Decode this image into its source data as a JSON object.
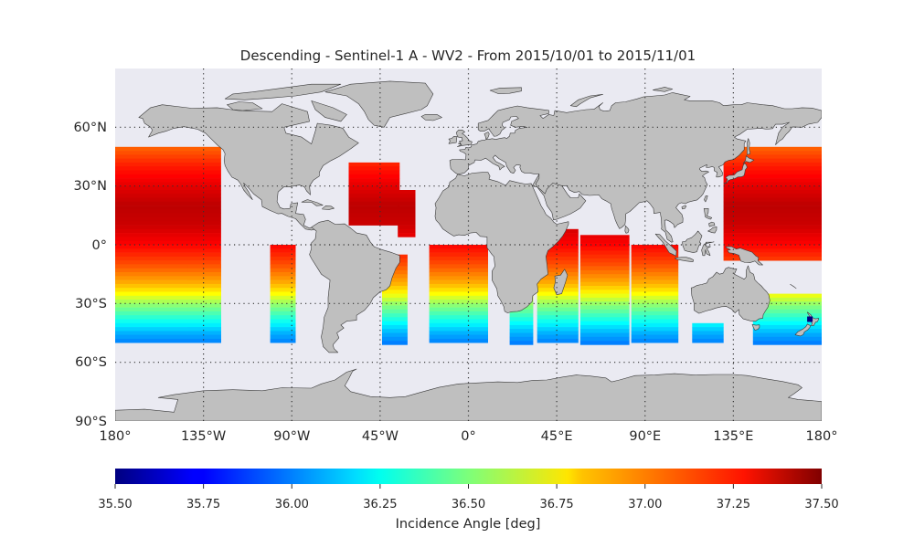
{
  "title": "Descending - Sentinel-1 A - WV2 - From 2015/10/01 to 2015/11/01",
  "map": {
    "projection": "equirectangular",
    "lon_range": [
      -180,
      180
    ],
    "lat_range": [
      -90,
      90
    ],
    "ocean_color": "#eaeaf2",
    "land_color": "#bfbfbf",
    "coast_color": "#3a3a3a",
    "graticule": "dotted",
    "lon_tick_labels": [
      "180°",
      "135°W",
      "90°W",
      "45°W",
      "0°",
      "45°E",
      "90°E",
      "135°E",
      "180°"
    ],
    "lat_tick_labels": [
      "60°N",
      "30°N",
      "0°",
      "30°S",
      "60°S",
      "90°S"
    ]
  },
  "colorbar": {
    "colormap": "jet",
    "vmin": 35.5,
    "vmax": 37.5,
    "tick_labels": [
      "35.50",
      "35.75",
      "36.00",
      "36.25",
      "36.50",
      "36.75",
      "37.00",
      "37.25",
      "37.50"
    ],
    "label": "Incidence Angle [deg]"
  },
  "chart_data": {
    "type": "heatmap",
    "title": "Descending - Sentinel-1 A - WV2 - From 2015/10/01 to 2015/11/01",
    "variable": "Incidence Angle [deg]",
    "value_range": [
      35.5,
      37.5
    ],
    "value_vs_latitude": [
      {
        "lat": 50,
        "value": 37.05
      },
      {
        "lat": 40,
        "value": 37.2
      },
      {
        "lat": 30,
        "value": 37.3
      },
      {
        "lat": 20,
        "value": 37.38
      },
      {
        "lat": 10,
        "value": 37.35
      },
      {
        "lat": 0,
        "value": 37.25
      },
      {
        "lat": -10,
        "value": 37.1
      },
      {
        "lat": -20,
        "value": 36.9
      },
      {
        "lat": -25,
        "value": 36.75
      },
      {
        "lat": -30,
        "value": 36.55
      },
      {
        "lat": -35,
        "value": 36.4
      },
      {
        "lat": -40,
        "value": 36.25
      },
      {
        "lat": -45,
        "value": 36.1
      },
      {
        "lat": -50,
        "value": 36.0
      }
    ],
    "swaths": [
      {
        "region": "North & South Pacific (east)",
        "lon": [
          -180,
          -126
        ],
        "lat": [
          -50,
          50
        ]
      },
      {
        "region": "East Pacific (south)",
        "lon": [
          -143,
          -126
        ],
        "lat": [
          -50,
          -10
        ]
      },
      {
        "region": "Pacific off South America",
        "lon": [
          -101,
          -88
        ],
        "lat": [
          -50,
          0
        ]
      },
      {
        "region": "Western North Atlantic",
        "lon": [
          -61,
          -35
        ],
        "lat": [
          10,
          42
        ]
      },
      {
        "region": "Central Atlantic (north)",
        "lon": [
          -36,
          -27
        ],
        "lat": [
          5,
          28
        ]
      },
      {
        "region": "South Atlantic (west)",
        "lon": [
          -44,
          -31
        ],
        "lat": [
          -50,
          -5
        ]
      },
      {
        "region": "South Atlantic (east)",
        "lon": [
          -20,
          10
        ],
        "lat": [
          -50,
          0
        ]
      },
      {
        "region": "Southwest Indian Ocean",
        "lon": [
          21,
          33
        ],
        "lat": [
          -50,
          -25
        ]
      },
      {
        "region": "Indian Ocean (central)",
        "lon": [
          35,
          56
        ],
        "lat": [
          -50,
          8
        ]
      },
      {
        "region": "Indian Ocean (east)",
        "lon": [
          57,
          82
        ],
        "lat": [
          -50,
          5
        ]
      },
      {
        "region": "Southeast Indian Ocean",
        "lon": [
          83,
          107
        ],
        "lat": [
          -50,
          0
        ]
      },
      {
        "region": "Southern Ocean south of Australia",
        "lon": [
          114,
          130
        ],
        "lat": [
          -50,
          -40
        ]
      },
      {
        "region": "Western North Pacific",
        "lon": [
          130,
          180
        ],
        "lat": [
          -8,
          50
        ]
      },
      {
        "region": "Tasman Sea",
        "lon": [
          145,
          180
        ],
        "lat": [
          -50,
          -25
        ]
      }
    ],
    "outlier": {
      "lon": 174,
      "lat": -38,
      "value": 35.5
    }
  }
}
